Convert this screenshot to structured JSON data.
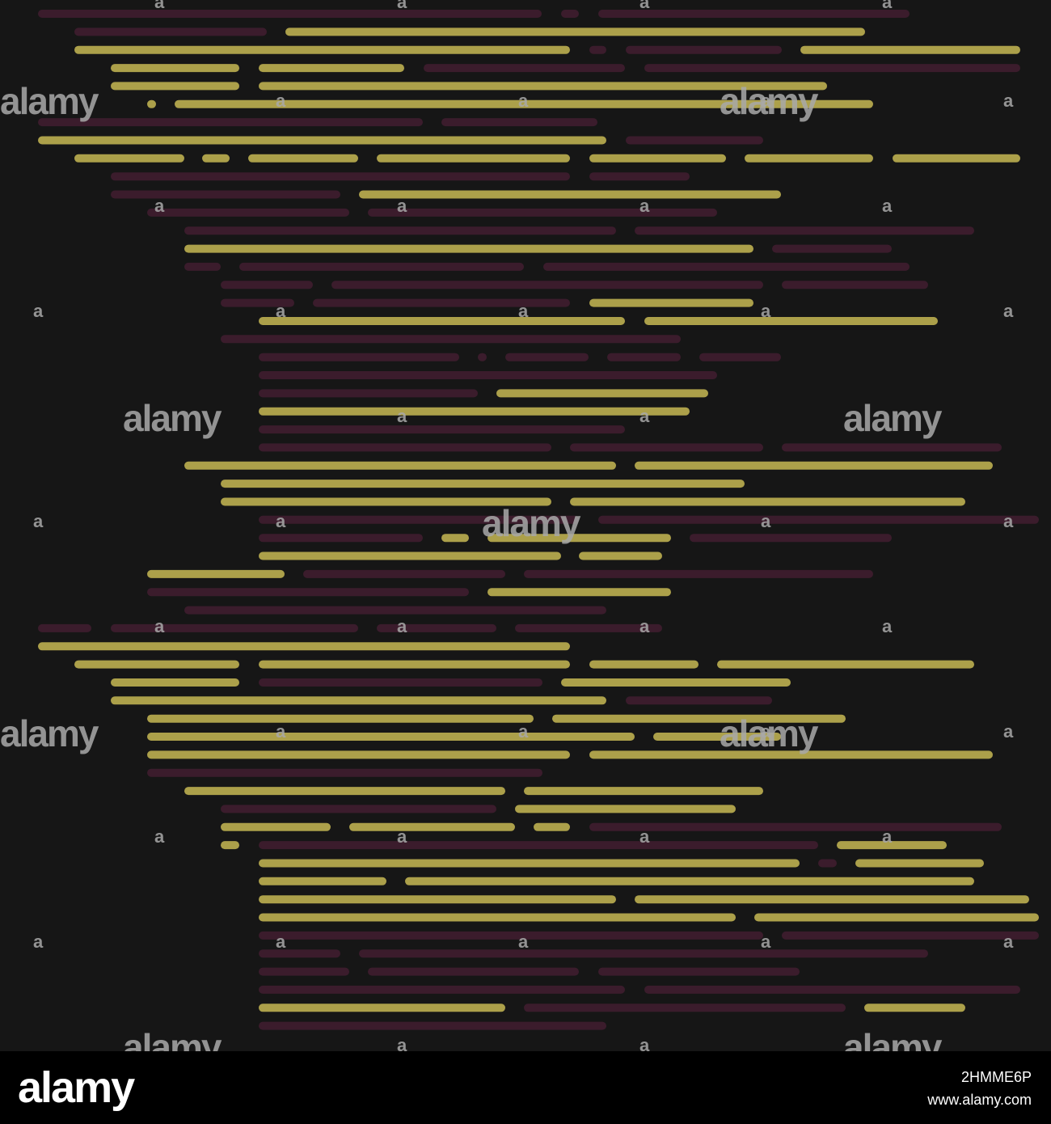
{
  "colors": {
    "background": "#161616",
    "yellow": "#aca04a",
    "purple": "#3b1c2c",
    "footer": "#000000",
    "watermark": "#a9a9a9"
  },
  "watermark": {
    "big_text": "alamy",
    "small_text": "a"
  },
  "footer": {
    "logo": "alamy",
    "image_id": "2HMME6P",
    "url": "www.alamy.com"
  }
}
